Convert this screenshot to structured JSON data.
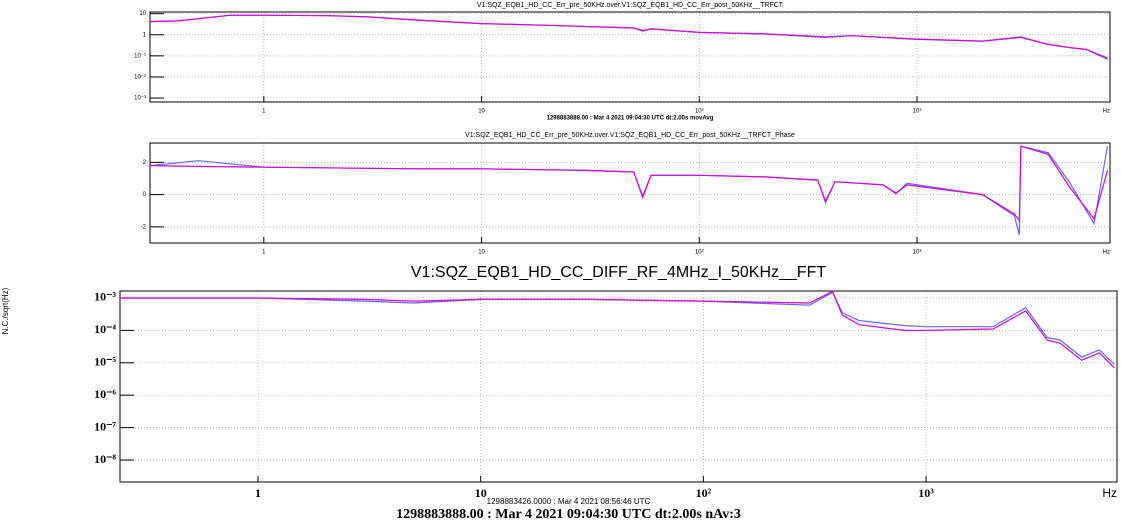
{
  "chart_data": [
    {
      "type": "line",
      "title": "V1:SQZ_EQB1_HD_CC_Err_pre_50KHz.over.V1:SQZ_EQB1_HD_CC_Err_post_50KHz__TRFCT",
      "subtitle": "1298883888.00 : Mar  4 2021 09:04:30 UTC dt:2.00s movAvg",
      "x_label": "Hz",
      "xlog": true,
      "ylog": true,
      "grid": true,
      "xlim": [
        0.3,
        7700
      ],
      "ylim": [
        0.00065,
        12
      ],
      "xticks": [
        1,
        10,
        {
          "value": 100,
          "label": "10²"
        },
        {
          "value": 1000,
          "label": "10³"
        }
      ],
      "yticks": [
        10,
        1,
        {
          "value": 0.1,
          "label": "10⁻¹"
        },
        {
          "value": 0.01,
          "label": "10⁻²"
        },
        {
          "value": 0.001,
          "label": "10⁻³"
        }
      ],
      "x": [
        0.3,
        0.4,
        0.7,
        1,
        2,
        3,
        5,
        10,
        20,
        50,
        55,
        60,
        100,
        200,
        380,
        500,
        1000,
        2000,
        3000,
        4000,
        5000,
        6000,
        7500
      ],
      "series": [
        {
          "color": "#6464ff",
          "values": [
            4.2,
            4.6,
            8.4,
            8.5,
            8,
            7,
            5,
            3.4,
            2.8,
            2.1,
            1.5,
            1.9,
            1.3,
            1.1,
            0.75,
            0.9,
            0.6,
            0.5,
            0.8,
            0.35,
            0.25,
            0.2,
            0.08
          ]
        },
        {
          "color": "#dd00dd",
          "values": [
            4.2,
            4.5,
            8.5,
            8.5,
            8,
            7,
            5,
            3.4,
            2.8,
            2.1,
            1.6,
            1.9,
            1.3,
            1.1,
            0.8,
            0.9,
            0.62,
            0.5,
            0.75,
            0.35,
            0.25,
            0.2,
            0.07
          ]
        }
      ]
    },
    {
      "type": "line",
      "title": "V1:SQZ_EQB1_HD_CC_Err_pre_50KHz.over.V1:SQZ_EQB1_HD_CC_Err_post_50KHz__TRFCT_Phase",
      "x_label": "Hz",
      "xlog": true,
      "ylog": false,
      "grid": true,
      "xlim": [
        0.3,
        7700
      ],
      "ylim": [
        -3,
        3.2
      ],
      "xticks": [
        1,
        10,
        {
          "value": 100,
          "label": "10²"
        },
        {
          "value": 1000,
          "label": "10³"
        }
      ],
      "yticks": [
        2,
        0,
        -2
      ],
      "x": [
        0.3,
        0.5,
        1,
        5,
        10,
        30,
        50,
        55,
        60,
        100,
        200,
        350,
        380,
        420,
        700,
        800,
        900,
        2000,
        2800,
        2950,
        3000,
        4000,
        5000,
        6500,
        7500
      ],
      "series": [
        {
          "color": "#6464ff",
          "values": [
            1.8,
            2.1,
            1.7,
            1.6,
            1.6,
            1.5,
            1.4,
            -0.2,
            1.2,
            1.2,
            1.1,
            0.9,
            -0.5,
            0.8,
            0.6,
            0.05,
            0.7,
            0.0,
            -1.3,
            -2.5,
            3.0,
            2.6,
            0.8,
            -1.8,
            3.0
          ]
        },
        {
          "color": "#dd00dd",
          "values": [
            1.8,
            1.75,
            1.7,
            1.6,
            1.6,
            1.5,
            1.4,
            -0.1,
            1.2,
            1.2,
            1.1,
            0.9,
            -0.4,
            0.8,
            0.6,
            0.1,
            0.6,
            0.0,
            -1.2,
            -1.6,
            3.0,
            2.5,
            0.5,
            -1.5,
            1.5
          ]
        }
      ]
    },
    {
      "type": "line",
      "title": "V1:SQZ_EQB1_HD_CC_DIFF_RF_4MHz_I_50KHz__FFT",
      "subtitle": "1298883426.0000 : Mar  4 2021 08:56:46 UTC",
      "footer": "1298883888.00 : Mar  4 2021 09:04:30 UTC dt:2.00s nAv:3",
      "y_label": "N.C./sqrt(Hz)",
      "x_label": "Hz",
      "xlog": true,
      "ylog": true,
      "grid": true,
      "xlim": [
        0.24,
        7200
      ],
      "ylim": [
        2.1e-09,
        0.00164
      ],
      "xticks": [
        1,
        10,
        {
          "value": 100,
          "label": "10²"
        },
        {
          "value": 1000,
          "label": "10³"
        }
      ],
      "yticks": [
        {
          "value": 0.001,
          "label": "10⁻³"
        },
        {
          "value": 0.0001,
          "label": "10⁻⁴"
        },
        {
          "value": 1e-05,
          "label": "10⁻⁵"
        },
        {
          "value": 1e-06,
          "label": "10⁻⁶"
        },
        {
          "value": 1e-07,
          "label": "10⁻⁷"
        },
        {
          "value": 1e-08,
          "label": "10⁻⁸"
        }
      ],
      "x": [
        0.24,
        1,
        3,
        5,
        10,
        30,
        100,
        300,
        380,
        420,
        500,
        800,
        1000,
        2000,
        2800,
        3500,
        4000,
        5000,
        6000,
        7000
      ],
      "series": [
        {
          "color": "#6464ff",
          "values": [
            0.001,
            0.001,
            0.0008,
            0.0007,
            0.0009,
            0.0009,
            0.0008,
            0.0006,
            0.0015,
            0.00035,
            0.0002,
            0.00014,
            0.00013,
            0.00013,
            0.0005,
            6e-05,
            5e-05,
            1.5e-05,
            2.5e-05,
            9e-06
          ]
        },
        {
          "color": "#dd00dd",
          "values": [
            0.001,
            0.001,
            0.0009,
            0.0008,
            0.0009,
            0.0009,
            0.0008,
            0.0007,
            0.0016,
            0.0003,
            0.00015,
            0.0001,
            0.0001,
            0.00011,
            0.0004,
            5e-05,
            4e-05,
            1.2e-05,
            2e-05,
            7e-06
          ]
        }
      ]
    }
  ]
}
